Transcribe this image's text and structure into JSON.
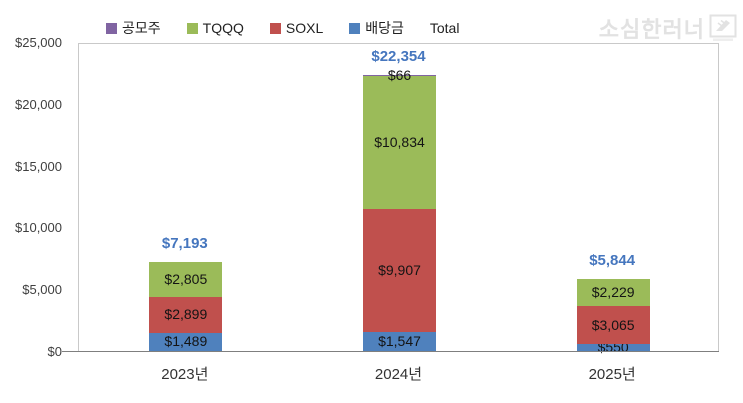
{
  "watermark": {
    "text": "소심한러너",
    "logo_icon": "running-shoe-logo",
    "color": "#e2e2e2"
  },
  "colors": {
    "plot_border": "#c9c9c9",
    "axis_line": "#7f7f7f",
    "tick_text": "#3f3f3f",
    "data_label": "#141414",
    "total_label": "#4576be"
  },
  "chart_data": {
    "type": "bar",
    "stacked": true,
    "title": "",
    "xlabel": "",
    "ylabel": "",
    "categories": [
      "2023년",
      "2024년",
      "2025년"
    ],
    "series": [
      {
        "name": "배당금",
        "color": "#4f81bd",
        "values": [
          1489,
          1547,
          550
        ],
        "labels": [
          "$1,489",
          "$1,547",
          "$550"
        ]
      },
      {
        "name": "SOXL",
        "color": "#c0504d",
        "values": [
          2899,
          9907,
          3065
        ],
        "labels": [
          "$2,899",
          "$9,907",
          "$3,065"
        ]
      },
      {
        "name": "TQQQ",
        "color": "#9bbb59",
        "values": [
          2805,
          10834,
          2229
        ],
        "labels": [
          "$2,805",
          "$10,834",
          "$2,229"
        ]
      },
      {
        "name": "공모주",
        "color": "#8064a2",
        "values": [
          0,
          66,
          0
        ],
        "labels": [
          "",
          "$66",
          ""
        ]
      }
    ],
    "totals": {
      "name": "Total",
      "values": [
        7193,
        22354,
        5844
      ],
      "labels": [
        "$7,193",
        "$22,354",
        "$5,844"
      ],
      "color": "#4576be"
    },
    "legend": [
      "공모주",
      "TQQQ",
      "SOXL",
      "배당금",
      "Total"
    ],
    "legend_position": "top",
    "grid": false,
    "ylim": [
      0,
      25000
    ],
    "y_tick_values": [
      0,
      5000,
      10000,
      15000,
      20000,
      25000
    ],
    "y_tick_labels": [
      "$0",
      "$5,000",
      "$10,000",
      "$15,000",
      "$20,000",
      "$25,000"
    ]
  }
}
